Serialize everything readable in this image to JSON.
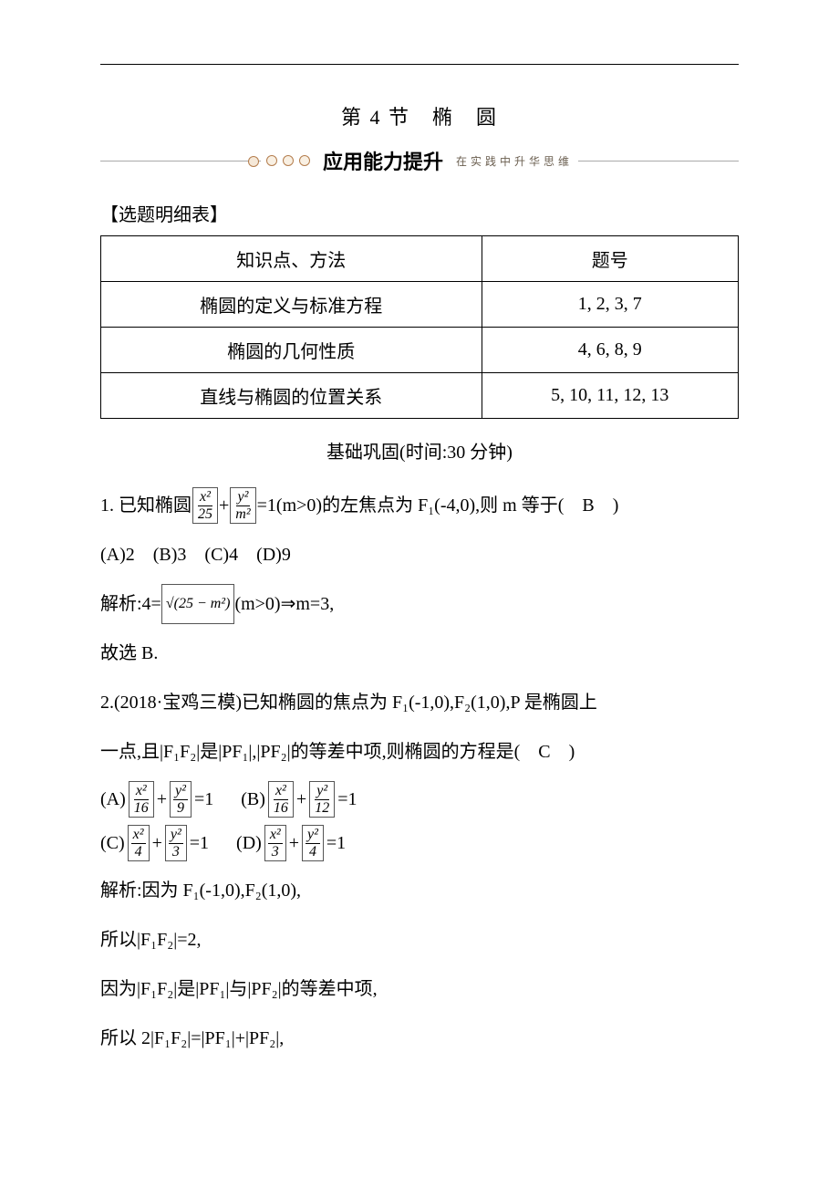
{
  "title": "第 4 节　椭　圆",
  "banner": {
    "big": "应用能力提升",
    "small": "在实践中升华思维"
  },
  "section_label": "【选题明细表】",
  "table": {
    "head": [
      "知识点、方法",
      "题号"
    ],
    "rows": [
      [
        "椭圆的定义与标准方程",
        "1, 2, 3, 7"
      ],
      [
        "椭圆的几何性质",
        "4, 6, 8, 9"
      ],
      [
        "直线与椭圆的位置关系",
        "5, 10, 11, 12, 13"
      ]
    ]
  },
  "basic_heading": "基础巩固(时间:30 分钟)",
  "q1": {
    "stem_a": "1. 已知椭圆",
    "frac1": {
      "num": "x²",
      "den": "25"
    },
    "plus": "+",
    "frac2": {
      "num": "y²",
      "den": "m²"
    },
    "stem_b": "=1(m>0)的左焦点为 F₁(-4,0),则 m 等于(　B　)",
    "options": "(A)2　(B)3　(C)4　(D)9",
    "sol_a": "解析:4=",
    "sqrt": "√(25 − m²)",
    "sol_b": "(m>0)⇒m=3,",
    "sol_c": "故选 B."
  },
  "q2": {
    "line1": "2.(2018·宝鸡三模)已知椭圆的焦点为 F₁(-1,0),F₂(1,0),P 是椭圆上",
    "line2": "一点,且|F₁F₂|是|PF₁|,|PF₂|的等差中项,则椭圆的方程是(　C　)",
    "optA": {
      "label": "(A)",
      "f1": {
        "num": "x²",
        "den": "16"
      },
      "plus": "+",
      "f2": {
        "num": "y²",
        "den": "9"
      },
      "eq": "=1"
    },
    "optB": {
      "label": "(B)",
      "f1": {
        "num": "x²",
        "den": "16"
      },
      "plus": "+",
      "f2": {
        "num": "y²",
        "den": "12"
      },
      "eq": "=1"
    },
    "optC": {
      "label": "(C)",
      "f1": {
        "num": "x²",
        "den": "4"
      },
      "plus": "+",
      "f2": {
        "num": "y²",
        "den": "3"
      },
      "eq": "=1"
    },
    "optD": {
      "label": "(D)",
      "f1": {
        "num": "x²",
        "den": "3"
      },
      "plus": "+",
      "f2": {
        "num": "y²",
        "den": "4"
      },
      "eq": "=1"
    },
    "sol1": "解析:因为 F₁(-1,0),F₂(1,0),",
    "sol2": "所以|F₁F₂|=2,",
    "sol3": "因为|F₁F₂|是|PF₁|与|PF₂|的等差中项,",
    "sol4": "所以 2|F₁F₂|=|PF₁|+|PF₂|,"
  }
}
